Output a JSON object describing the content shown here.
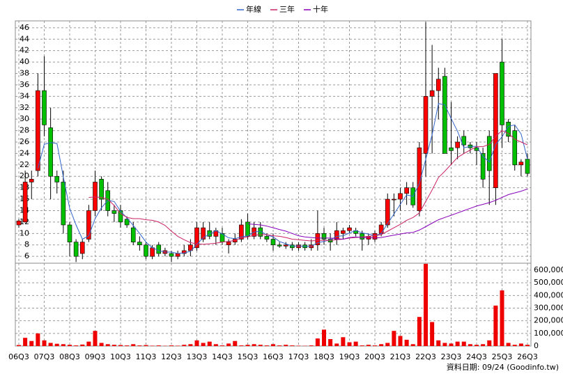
{
  "chart_data": [
    {
      "type": "candlestick",
      "source": "資料日期: 09/24 (Goodinfo.tw)",
      "categories": [
        "06Q3",
        null,
        null,
        null,
        "07Q3",
        null,
        null,
        null,
        "08Q3",
        null,
        null,
        null,
        "09Q3",
        null,
        null,
        null,
        "10Q3",
        null,
        null,
        null,
        "11Q3",
        null,
        null,
        null,
        "12Q3",
        null,
        null,
        null,
        "13Q3",
        null,
        null,
        null,
        "14Q3",
        null,
        null,
        null,
        "15Q3",
        null,
        null,
        null,
        "16Q3",
        null,
        null,
        null,
        "17Q3",
        null,
        null,
        null,
        "18Q3",
        null,
        null,
        null,
        "19Q3",
        null,
        null,
        null,
        "20Q3",
        null,
        null,
        null,
        "21Q3",
        null,
        null,
        null,
        "22Q3",
        null,
        null,
        null,
        "23Q3",
        null,
        null,
        null,
        "24Q3",
        null,
        null,
        null,
        "25Q3",
        null,
        null,
        null,
        "26Q3"
      ],
      "open": [
        11.5,
        12,
        19,
        21,
        35,
        28.5,
        20,
        19,
        11.5,
        8.5,
        6.5,
        9,
        14,
        19.5,
        17.5,
        14,
        14,
        12.5,
        11,
        8.5,
        8,
        6,
        8,
        6.5,
        6.5,
        6,
        6.5,
        7,
        7.5,
        9,
        10.5,
        9.5,
        10,
        8,
        8.5,
        9,
        12,
        9.5,
        11,
        9.5,
        9,
        8,
        7.8,
        8,
        7.5,
        8,
        7.5,
        8,
        10,
        9,
        9,
        10,
        10.5,
        10.5,
        10,
        9,
        9,
        10,
        11.5,
        16,
        16,
        17,
        18,
        14,
        24,
        34,
        35,
        37.5,
        25,
        25,
        27,
        25.5,
        25,
        24,
        27,
        18,
        40,
        29.5,
        28,
        22,
        23
      ],
      "high": [
        12.5,
        21,
        21,
        38,
        41,
        32,
        21,
        21,
        12,
        9,
        9,
        15,
        21,
        20,
        19,
        15,
        15,
        13,
        12,
        9.5,
        8.5,
        8,
        8.5,
        7.5,
        7,
        7,
        8,
        9,
        12,
        12,
        12,
        11,
        11,
        9,
        10,
        12.5,
        13.5,
        12,
        12,
        10,
        10,
        8.5,
        8.5,
        8.5,
        8.5,
        8.5,
        9,
        14,
        11,
        10,
        12,
        11,
        11.5,
        11,
        10.5,
        10,
        10.5,
        12,
        17,
        17,
        18,
        19,
        19,
        26,
        47,
        43,
        39,
        39,
        33,
        27,
        28,
        26,
        26,
        25,
        28,
        38,
        44,
        30,
        29,
        23,
        24
      ],
      "low": [
        11,
        12,
        16,
        20,
        27,
        16,
        17,
        10,
        6,
        5,
        5.5,
        8.5,
        13,
        14,
        13,
        12,
        11,
        11,
        8,
        7,
        5.5,
        5.5,
        6,
        6,
        5,
        5.5,
        6,
        6,
        7,
        8.5,
        9,
        8,
        8,
        6.5,
        8,
        8.5,
        9,
        9,
        9,
        8.5,
        7,
        7.5,
        7.3,
        7,
        7,
        7,
        7,
        7,
        8,
        7,
        8,
        9,
        10,
        9.5,
        7,
        8,
        8.5,
        9.5,
        11,
        13,
        14,
        15,
        14.5,
        13,
        20,
        24,
        30,
        24,
        22,
        23,
        24,
        24,
        22,
        18,
        15,
        15,
        25,
        26,
        21,
        20,
        20
      ],
      "close": [
        12.2,
        19,
        19.5,
        35,
        29,
        20,
        19,
        11.5,
        8.5,
        6,
        8.5,
        14,
        19,
        16,
        14,
        13.5,
        12,
        11.5,
        8.5,
        8,
        6,
        7.5,
        6.5,
        7,
        6,
        6.5,
        7,
        8,
        11,
        11,
        9.5,
        10.5,
        8.5,
        8.5,
        9,
        11.5,
        9.5,
        11,
        9.5,
        9,
        8,
        7.8,
        8,
        7.5,
        8,
        7.5,
        8,
        10,
        9,
        8.5,
        10.5,
        10.5,
        11,
        10,
        9,
        9.5,
        10,
        11.5,
        16,
        16,
        17,
        18,
        15,
        25,
        34,
        35,
        37,
        24,
        24.5,
        26,
        25.5,
        25,
        24.5,
        19.5,
        21,
        38,
        29,
        27,
        22,
        22.5,
        20.5
      ],
      "up_color": "#ff0000",
      "down_color": "#00c000",
      "series": [
        {
          "name": "年線",
          "color": "#3366cc",
          "values": [
            null,
            null,
            null,
            21.4,
            25.6,
            25.9,
            25.75,
            19.9,
            14.4,
            11.5,
            9,
            9.6,
            12.6,
            14.5,
            15.8,
            15.6,
            13.9,
            12.75,
            11.4,
            10,
            8.5,
            7.5,
            7,
            6.75,
            6.75,
            6.5,
            6.6,
            6.9,
            8.1,
            9.25,
            9.9,
            10.5,
            9.9,
            9.25,
            9.1,
            9.4,
            9.6,
            10.25,
            10.4,
            9.75,
            9.4,
            8.6,
            8.2,
            7.8,
            7.8,
            7.75,
            7.75,
            8.4,
            8.6,
            8.9,
            9.5,
            9.6,
            10.1,
            10.5,
            10.1,
            9.9,
            9.6,
            10,
            11.75,
            13.4,
            15.1,
            16.75,
            16.5,
            18.75,
            23,
            27.25,
            32.75,
            32.5,
            30.1,
            27.9,
            25,
            25.25,
            25.25,
            23.5,
            22.5,
            25.6,
            26.9,
            28.75,
            29,
            27.4,
            23
          ]
        },
        {
          "name": "三年",
          "color": "#cc2266",
          "values": [
            null,
            null,
            null,
            null,
            null,
            null,
            null,
            null,
            null,
            null,
            null,
            16.3,
            16.4,
            16.3,
            16,
            14.9,
            13.5,
            12.8,
            12.6,
            12.6,
            12.4,
            12.3,
            12,
            11.4,
            10.4,
            9.5,
            8.9,
            8.4,
            8.2,
            8.1,
            8.2,
            8.3,
            8.5,
            8.6,
            8.8,
            9.2,
            9.4,
            9.7,
            9.8,
            9.8,
            9.6,
            9.5,
            9.3,
            9,
            8.9,
            8.8,
            8.7,
            8.8,
            8.8,
            8.8,
            8.9,
            9,
            9.2,
            9.3,
            9.4,
            9.5,
            9.6,
            9.8,
            10.4,
            11,
            11.6,
            12.3,
            12.8,
            13.6,
            15.6,
            17.6,
            19.8,
            20.9,
            22.1,
            23.3,
            24,
            24.6,
            25.2,
            25.2,
            25.6,
            27,
            28,
            27.5,
            26.5,
            26,
            25.5
          ]
        },
        {
          "name": "十年",
          "color": "#8800bb",
          "values": [
            null,
            null,
            null,
            null,
            null,
            null,
            null,
            null,
            null,
            null,
            null,
            null,
            null,
            null,
            null,
            null,
            null,
            null,
            null,
            null,
            null,
            null,
            null,
            null,
            null,
            null,
            null,
            null,
            null,
            null,
            null,
            null,
            null,
            null,
            null,
            null,
            11.7,
            11.6,
            11.5,
            11.3,
            11,
            10.7,
            10.4,
            10,
            9.6,
            9.4,
            9.3,
            9.2,
            9.2,
            9.2,
            9.1,
            9,
            9.3,
            9.4,
            9.3,
            9.3,
            9.2,
            9.3,
            9.5,
            9.7,
            9.9,
            10.1,
            10.2,
            10.6,
            11.2,
            11.8,
            12.4,
            12.8,
            13.2,
            13.6,
            14,
            14.4,
            14.8,
            15.1,
            15.4,
            15.8,
            16.3,
            16.8,
            17.1,
            17.4,
            17.8
          ]
        }
      ],
      "ylim": [
        4.8,
        47.2
      ],
      "yticks": [
        6,
        8,
        10,
        12,
        14,
        16,
        18,
        20,
        22,
        24,
        26,
        28,
        30,
        32,
        34,
        36,
        38,
        40,
        42,
        44,
        46
      ],
      "grid": true
    },
    {
      "type": "bar",
      "color": "#ee0000",
      "values": [
        8000,
        65000,
        40000,
        100000,
        45000,
        25000,
        18000,
        15000,
        10000,
        5000,
        12000,
        35000,
        120000,
        25000,
        15000,
        10000,
        8000,
        5000,
        15000,
        5000,
        8000,
        3000,
        5000,
        2000,
        5000,
        3000,
        10000,
        15000,
        45000,
        25000,
        35000,
        15000,
        5000,
        20000,
        40000,
        5000,
        10000,
        15000,
        10000,
        5000,
        15000,
        5000,
        10000,
        5000,
        3000,
        2000,
        5000,
        60000,
        130000,
        55000,
        20000,
        70000,
        30000,
        35000,
        5000,
        10000,
        5000,
        15000,
        25000,
        120000,
        80000,
        50000,
        15000,
        230000,
        650000,
        190000,
        45000,
        25000,
        20000,
        35000,
        35000,
        15000,
        10000,
        15000,
        45000,
        320000,
        440000,
        25000,
        10000,
        20000,
        10000
      ],
      "ylim": [
        0,
        655000
      ],
      "yticks": [
        0,
        {
          "value": 100000,
          "label": "100,000"
        },
        {
          "value": 200000,
          "label": "200,000"
        },
        {
          "value": 300000,
          "label": "300,000"
        },
        {
          "value": 400000,
          "label": "400,000"
        },
        {
          "value": 500000,
          "label": "500,000"
        },
        {
          "value": 600000,
          "label": "600,000"
        }
      ],
      "grid": true
    }
  ]
}
